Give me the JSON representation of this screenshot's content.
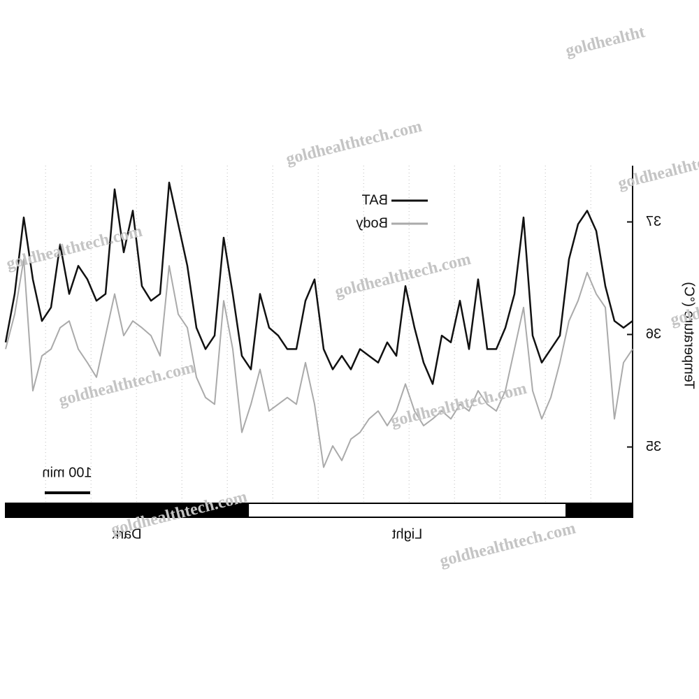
{
  "chart_data": {
    "type": "line",
    "ylabel": "Temperature (°C)",
    "x": [
      12,
      32,
      52,
      72,
      92,
      112,
      132,
      152,
      172,
      192,
      212,
      232,
      252,
      272,
      292,
      312,
      332,
      352,
      372,
      392,
      412,
      432,
      452,
      472,
      492,
      512,
      532,
      552,
      572,
      592,
      612,
      632,
      652,
      672,
      692,
      712,
      732,
      752,
      772,
      792,
      812,
      832,
      852,
      872,
      892,
      912,
      932,
      952,
      972,
      992,
      1012,
      1032,
      1052,
      1072,
      1092,
      1112,
      1132,
      1152,
      1172,
      1192,
      1212,
      1232,
      1252,
      1272,
      1292,
      1312,
      1332,
      1352,
      1372,
      1392
    ],
    "xlim": [
      12,
      1392
    ],
    "xticks": [
      100,
      200,
      300,
      400,
      500,
      600,
      700,
      800,
      900,
      1000,
      1100,
      1200,
      1300
    ],
    "ylim": [
      34.5,
      37.5
    ],
    "yticks": [
      35,
      36,
      37
    ],
    "series": [
      {
        "name": "BAT",
        "color": "#111111",
        "values": [
          35.93,
          36.36,
          37.04,
          36.49,
          36.12,
          36.24,
          36.8,
          36.36,
          36.61,
          36.49,
          36.3,
          36.36,
          37.29,
          36.73,
          37.1,
          36.43,
          36.3,
          36.36,
          37.35,
          36.98,
          36.61,
          36.06,
          35.87,
          35.99,
          36.86,
          36.36,
          35.81,
          35.69,
          36.36,
          36.06,
          35.99,
          35.87,
          35.87,
          36.3,
          36.49,
          35.87,
          35.69,
          35.81,
          35.69,
          35.87,
          35.81,
          35.75,
          35.93,
          35.81,
          36.43,
          36.06,
          35.75,
          35.56,
          35.99,
          35.93,
          36.3,
          35.87,
          36.49,
          35.87,
          35.87,
          36.06,
          36.36,
          37.04,
          35.99,
          35.75,
          35.87,
          35.99,
          36.67,
          36.98,
          37.1,
          36.92,
          36.43,
          36.12,
          36.06,
          36.12
        ]
      },
      {
        "name": "Body",
        "color": "#aaaaaa",
        "values": [
          35.87,
          36.18,
          36.67,
          35.5,
          35.81,
          35.87,
          36.06,
          36.12,
          35.87,
          35.75,
          35.62,
          35.99,
          36.36,
          35.99,
          36.12,
          36.06,
          35.99,
          35.81,
          36.61,
          36.18,
          36.06,
          35.62,
          35.44,
          35.38,
          36.3,
          35.87,
          35.13,
          35.38,
          35.69,
          35.32,
          35.38,
          35.44,
          35.38,
          35.75,
          35.38,
          34.82,
          35.01,
          34.88,
          35.07,
          35.13,
          35.25,
          35.32,
          35.19,
          35.32,
          35.56,
          35.32,
          35.19,
          35.25,
          35.32,
          35.25,
          35.38,
          35.32,
          35.5,
          35.38,
          35.32,
          35.5,
          35.87,
          36.24,
          35.5,
          35.25,
          35.44,
          35.75,
          36.12,
          36.3,
          36.55,
          36.36,
          36.24,
          35.25,
          35.75,
          35.87
        ]
      }
    ],
    "scale_bar": {
      "value": 100,
      "label": "100 min"
    },
    "periods": [
      {
        "label": "Dark",
        "start": 12,
        "end": 546,
        "fill": "#000000"
      },
      {
        "label": "Light",
        "start": 546,
        "end": 1246,
        "fill": "#ffffff"
      },
      {
        "label": null,
        "start": 1246,
        "end": 1392,
        "fill": "#000000"
      }
    ],
    "watermarks": [
      "goldhealtht",
      "goldhealthtech.com",
      "goldhealthtech.com",
      "goldhealthtech.com",
      "goldhealthtech.com",
      "goldhealthtech.com",
      "goldhealthtech.com",
      "goldhealthtech.com",
      "goldhealthtech.com",
      "goldhealthtech.com"
    ]
  }
}
